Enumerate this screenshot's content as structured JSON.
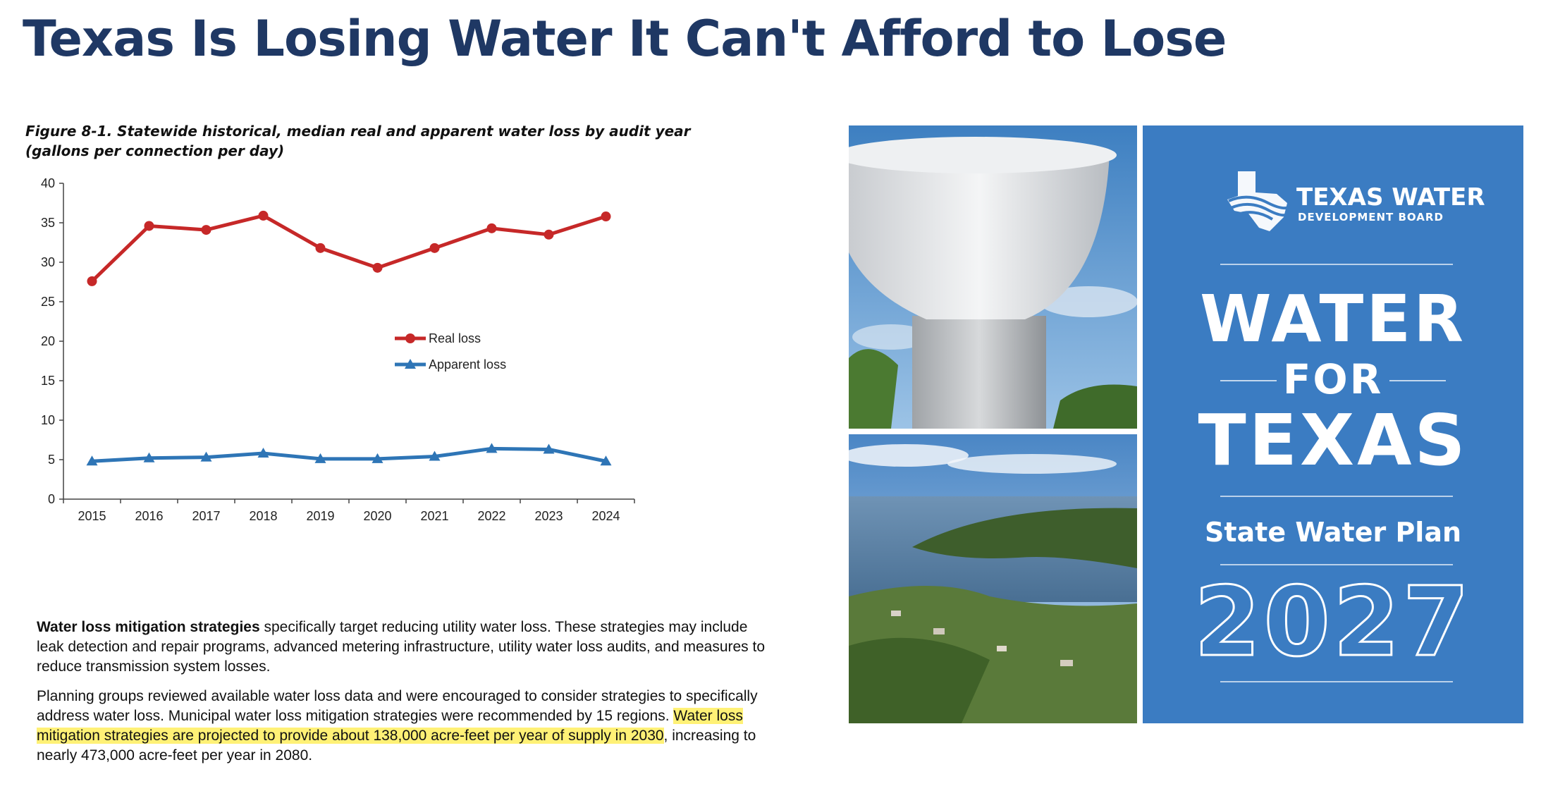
{
  "slide": {
    "title": "Texas Is Losing Water It Can't Afford to Lose",
    "figure_caption": "Figure 8-1. Statewide historical, median real and apparent water loss by audit year (gallons per connection per day)"
  },
  "chart_data": {
    "type": "line",
    "title": "",
    "xlabel": "",
    "ylabel": "",
    "categories": [
      "2015",
      "2016",
      "2017",
      "2018",
      "2019",
      "2020",
      "2021",
      "2022",
      "2023",
      "2024"
    ],
    "yticks": [
      "0",
      "5",
      "10",
      "15",
      "20",
      "25",
      "30",
      "35",
      "40"
    ],
    "ylim": [
      0,
      40
    ],
    "grid": false,
    "legend_position": "center",
    "series": [
      {
        "name": "Real loss",
        "marker": "circle",
        "color": "#c62828",
        "values": [
          27.6,
          34.6,
          34.1,
          35.9,
          31.8,
          29.3,
          31.8,
          34.3,
          33.5,
          35.8
        ]
      },
      {
        "name": "Apparent loss",
        "marker": "triangle",
        "color": "#2e75b6",
        "values": [
          4.8,
          5.2,
          5.3,
          5.8,
          5.1,
          5.1,
          5.4,
          6.4,
          6.3,
          4.8
        ]
      }
    ]
  },
  "body": {
    "p1_bold": "Water loss mitigation strategies",
    "p1_rest": " specifically target reducing utility water loss. These strategies may include leak detection and repair programs, advanced metering infrastructure, utility water loss audits, and measures to reduce transmission system losses.",
    "p2_start": "Planning groups reviewed available water loss data and were encouraged to consider strategies to specifically address water loss. Municipal water loss mitigation strategies were recommended by 15 regions. ",
    "p2_highlight": "Water loss mitigation strategies are projected to provide about 138,000 acre-feet per year of supply in 2030",
    "p2_end": ", increasing to nearly 473,000 acre-feet per year in 2080.",
    "highlight_color": "#fff176"
  },
  "cover": {
    "logo_line1": "TEXAS WATER",
    "logo_line2": "DEVELOPMENT BOARD",
    "line_water": "WATER",
    "line_for": "FOR",
    "line_texas": "TEXAS",
    "subtitle": "State Water Plan",
    "year": "2027",
    "bg_color": "#3b7cc2"
  },
  "photos": {
    "top": "water-tower-photo",
    "bottom": "lake-landscape-photo"
  }
}
